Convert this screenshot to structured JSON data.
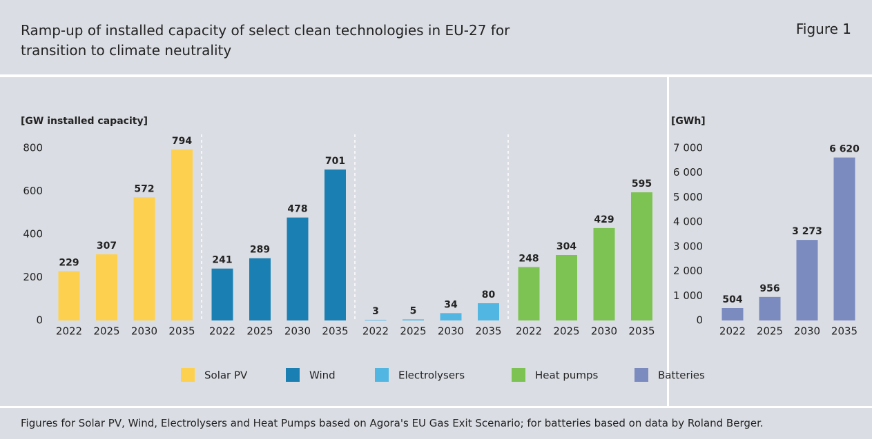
{
  "header": {
    "title": "Ramp-up of installed capacity of select clean technologies in EU-27 for transition to climate neutrality",
    "figure": "Figure 1"
  },
  "note": "Figures for Solar PV, Wind, Electrolysers and Heat Pumps based on Agora's EU Gas Exit Scenario; for batteries based on data by Roland Berger.",
  "chart_data": [
    {
      "type": "bar",
      "ylabel": "[GW installed capacity]",
      "ylim": [
        0,
        800
      ],
      "yticks": [
        0,
        200,
        400,
        600,
        800
      ],
      "categories": [
        "2022",
        "2025",
        "2030",
        "2035"
      ],
      "series": [
        {
          "name": "Solar PV",
          "color": "#fdd14f",
          "values": [
            229,
            307,
            572,
            794
          ]
        },
        {
          "name": "Wind",
          "color": "#1a80b3",
          "values": [
            241,
            289,
            478,
            701
          ]
        },
        {
          "name": "Electrolysers",
          "color": "#52b6e3",
          "values": [
            3,
            5,
            34,
            80
          ]
        },
        {
          "name": "Heat pumps",
          "color": "#7dc353",
          "values": [
            248,
            304,
            429,
            595
          ]
        }
      ]
    },
    {
      "type": "bar",
      "ylabel": "[GWh]",
      "ylim": [
        0,
        7000
      ],
      "yticks": [
        0,
        {
          "value": 1000,
          "label": "1 000"
        },
        {
          "value": 2000,
          "label": "2 000"
        },
        {
          "value": 3000,
          "label": "3 000"
        },
        {
          "value": 4000,
          "label": "4 000"
        },
        {
          "value": 5000,
          "label": "5 000"
        },
        {
          "value": 6000,
          "label": "6 000"
        },
        {
          "value": 7000,
          "label": "7 000"
        }
      ],
      "categories": [
        "2022",
        "2025",
        "2030",
        "2035"
      ],
      "series": [
        {
          "name": "Batteries",
          "color": "#7b8bc0",
          "values": [
            504,
            956,
            3273,
            6620
          ],
          "value_labels": [
            "504",
            "956",
            "3 273",
            "6 620"
          ]
        }
      ]
    }
  ]
}
